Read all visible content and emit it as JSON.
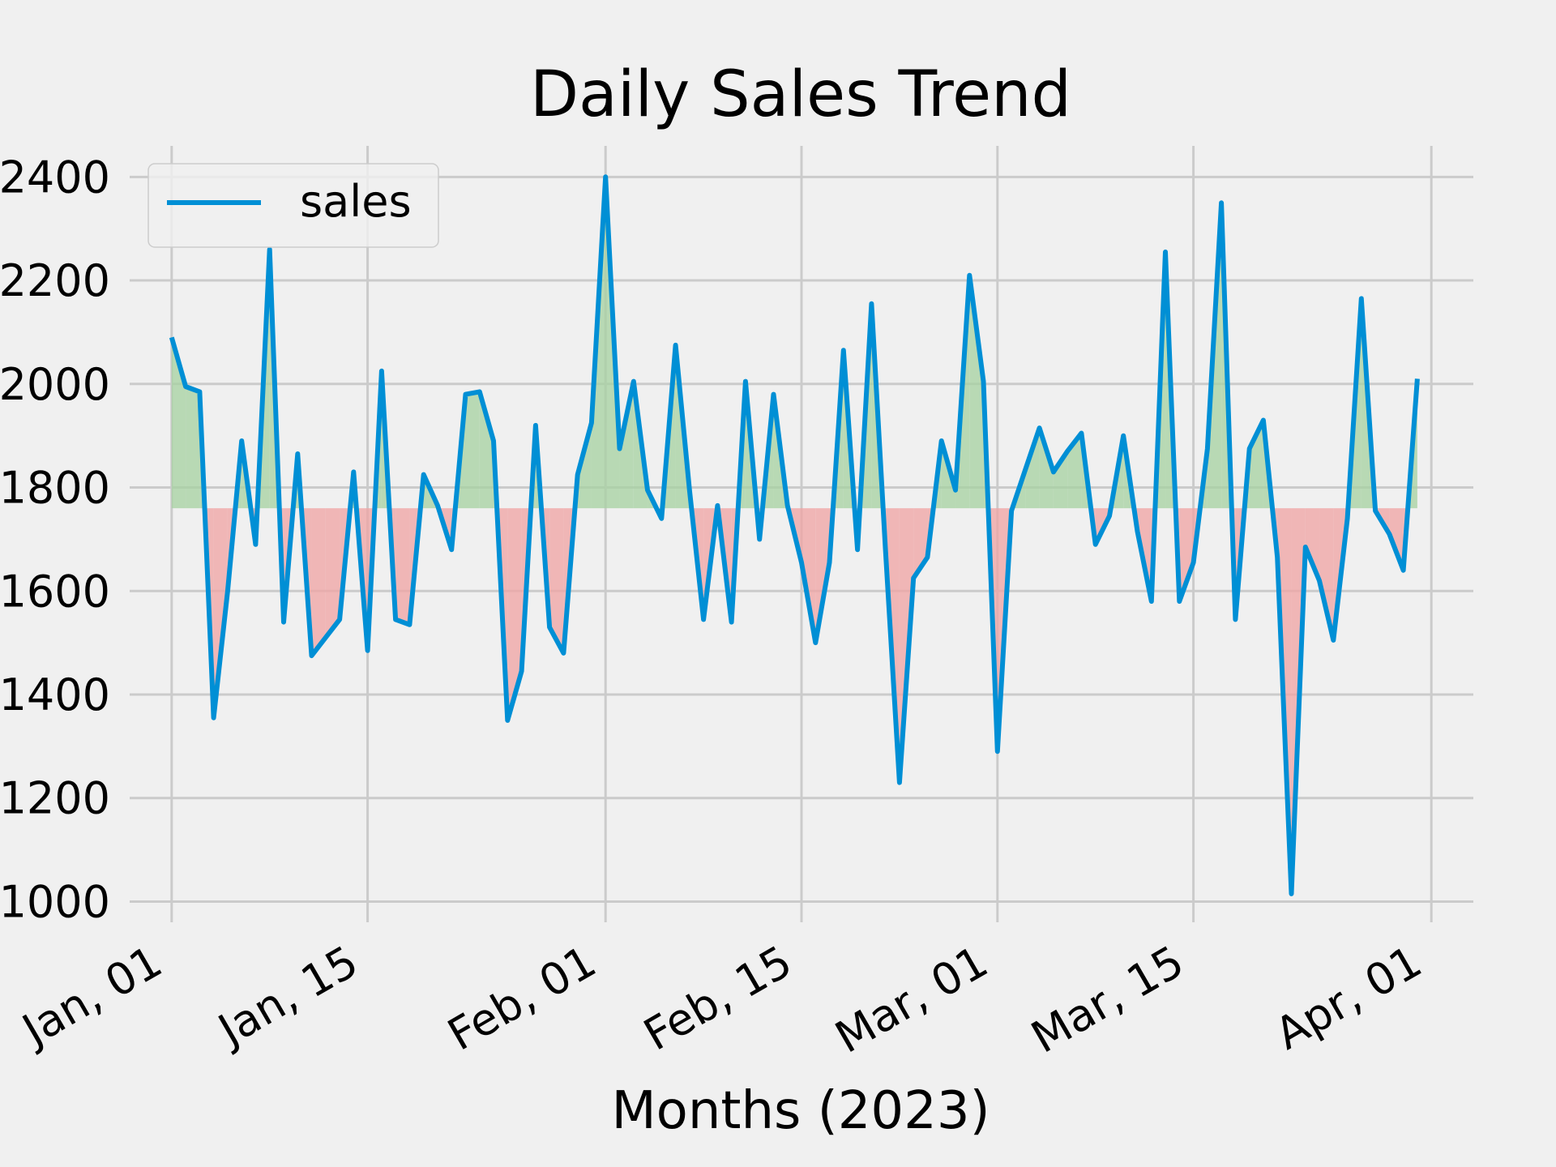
{
  "chart_data": {
    "type": "line",
    "title": "Daily Sales Trend",
    "xlabel": "Months (2023)",
    "ylabel": "",
    "x_tick_labels": [
      "Jan, 01",
      "Jan, 15",
      "Feb, 01",
      "Feb, 15",
      "Mar, 01",
      "Mar, 15",
      "Apr, 01"
    ],
    "y_tick_labels": [
      "1000",
      "1200",
      "1400",
      "1600",
      "1800",
      "2000",
      "2200",
      "2400"
    ],
    "y_ticks": [
      1000,
      1200,
      1400,
      1600,
      1800,
      2000,
      2200,
      2400
    ],
    "ylim": [
      960,
      2460
    ],
    "xlim": [
      "2022-12-29",
      "2023-04-04"
    ],
    "grid": true,
    "legend_position": "top-left",
    "baseline": 1760,
    "colors": {
      "line": "#008fd5",
      "above": "#a6d1a0",
      "below": "#f0a3a3",
      "grid": "#cbcbcb",
      "background": "#f0f0f0"
    },
    "series": [
      {
        "name": "sales",
        "x": [
          "2023-01-01",
          "2023-01-02",
          "2023-01-03",
          "2023-01-04",
          "2023-01-05",
          "2023-01-06",
          "2023-01-07",
          "2023-01-08",
          "2023-01-09",
          "2023-01-10",
          "2023-01-11",
          "2023-01-12",
          "2023-01-13",
          "2023-01-14",
          "2023-01-15",
          "2023-01-16",
          "2023-01-17",
          "2023-01-18",
          "2023-01-19",
          "2023-01-20",
          "2023-01-21",
          "2023-01-22",
          "2023-01-23",
          "2023-01-24",
          "2023-01-25",
          "2023-01-26",
          "2023-01-27",
          "2023-01-28",
          "2023-01-29",
          "2023-01-30",
          "2023-01-31",
          "2023-02-01",
          "2023-02-02",
          "2023-02-03",
          "2023-02-04",
          "2023-02-05",
          "2023-02-06",
          "2023-02-07",
          "2023-02-08",
          "2023-02-09",
          "2023-02-10",
          "2023-02-11",
          "2023-02-12",
          "2023-02-13",
          "2023-02-14",
          "2023-02-15",
          "2023-02-16",
          "2023-02-17",
          "2023-02-18",
          "2023-02-19",
          "2023-02-20",
          "2023-02-21",
          "2023-02-22",
          "2023-02-23",
          "2023-02-24",
          "2023-02-25",
          "2023-02-26",
          "2023-02-27",
          "2023-02-28",
          "2023-03-01",
          "2023-03-02",
          "2023-03-03",
          "2023-03-04",
          "2023-03-05",
          "2023-03-06",
          "2023-03-07",
          "2023-03-08",
          "2023-03-09",
          "2023-03-10",
          "2023-03-11",
          "2023-03-12",
          "2023-03-13",
          "2023-03-14",
          "2023-03-15",
          "2023-03-16",
          "2023-03-17",
          "2023-03-18",
          "2023-03-19",
          "2023-03-20",
          "2023-03-21",
          "2023-03-22",
          "2023-03-23",
          "2023-03-24",
          "2023-03-25",
          "2023-03-26",
          "2023-03-27",
          "2023-03-28",
          "2023-03-29",
          "2023-03-30",
          "2023-03-31"
        ],
        "values": [
          2090,
          1995,
          1985,
          1355,
          1600,
          1890,
          1690,
          2260,
          1540,
          1865,
          1475,
          1510,
          1545,
          1830,
          1485,
          2025,
          1545,
          1535,
          1825,
          1765,
          1680,
          1980,
          1985,
          1890,
          1350,
          1445,
          1920,
          1530,
          1480,
          1825,
          1925,
          2400,
          1875,
          2005,
          1795,
          1740,
          2075,
          1795,
          1545,
          1765,
          1540,
          2005,
          1700,
          1980,
          1765,
          1655,
          1500,
          1655,
          2065,
          1680,
          2155,
          1680,
          1230,
          1625,
          1665,
          1890,
          1795,
          2210,
          2005,
          1290,
          1755,
          1835,
          1915,
          1830,
          1870,
          1905,
          1690,
          1745,
          1900,
          1715,
          1580,
          2255,
          1580,
          1655,
          1875,
          2350,
          1545,
          1875,
          1930,
          1665,
          1015,
          1685,
          1620,
          1505,
          1740,
          2165,
          1755,
          1710,
          1640,
          2010
        ]
      }
    ]
  }
}
